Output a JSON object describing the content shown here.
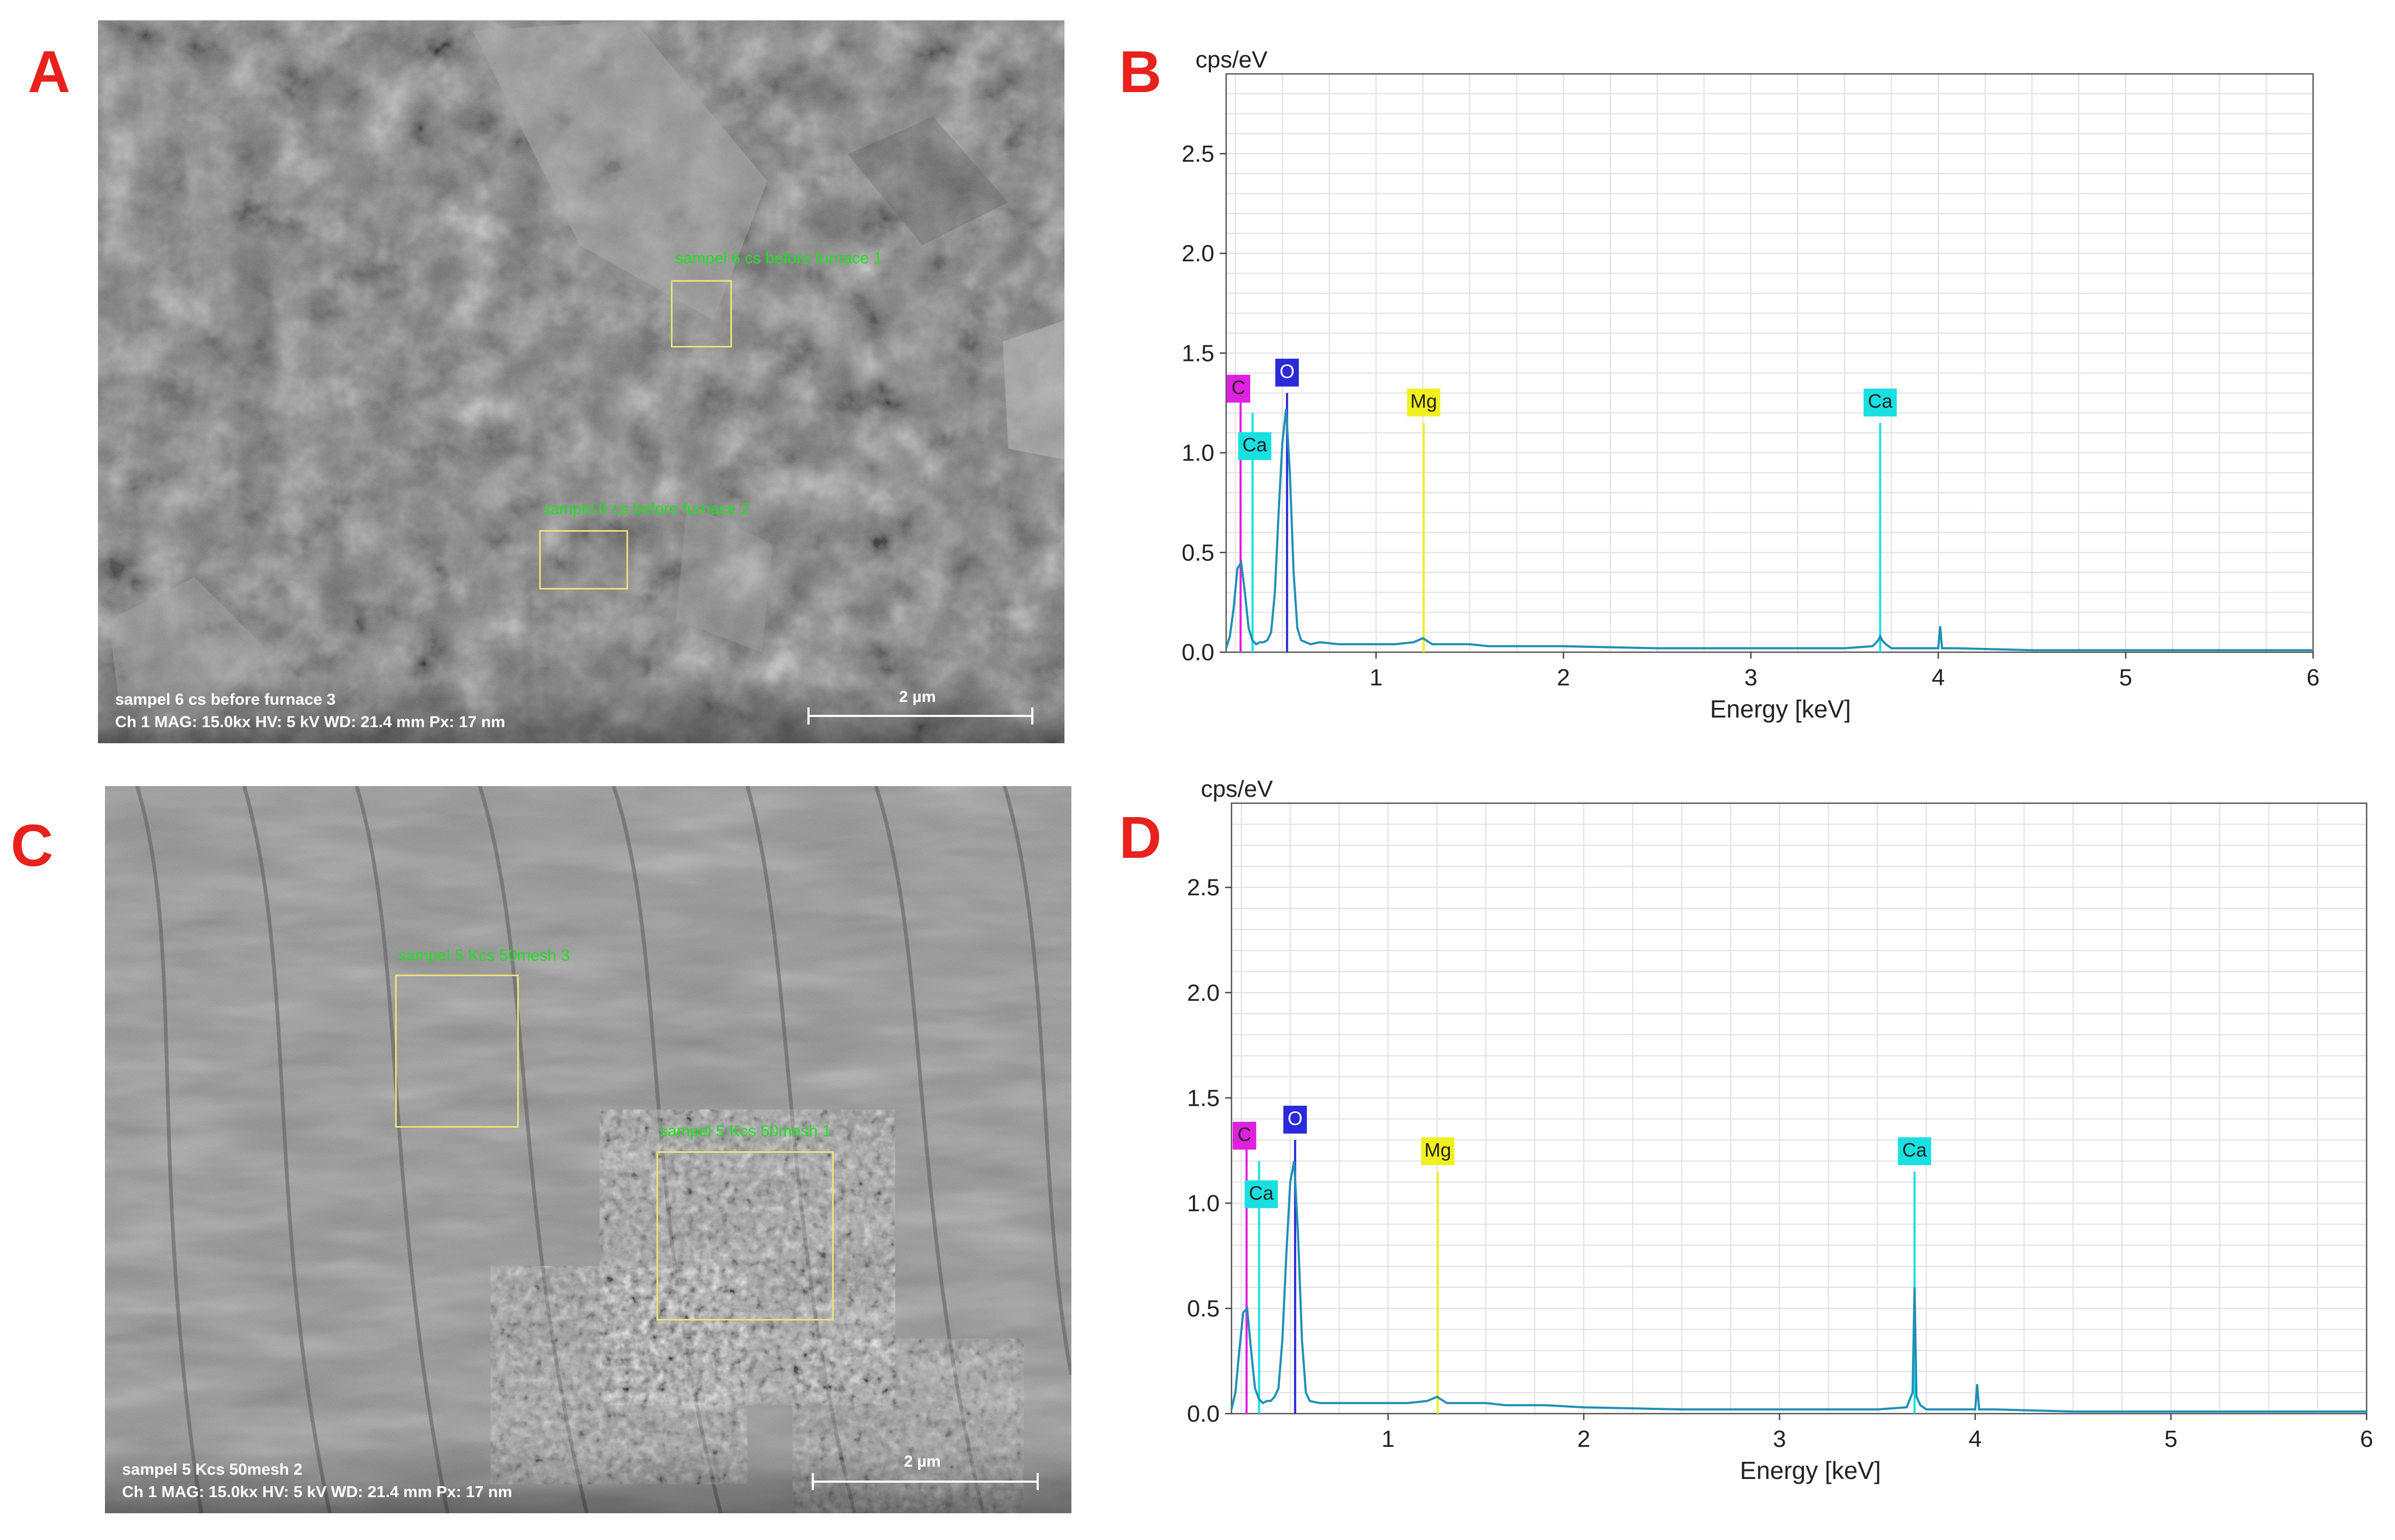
{
  "panels": {
    "A": {
      "letter": "A"
    },
    "B": {
      "letter": "B"
    },
    "C": {
      "letter": "C"
    },
    "D": {
      "letter": "D"
    }
  },
  "sem_top": {
    "roi_labels": [
      "sampel 6 cs before furnace 1",
      "sampel 6 cs before furnace 2"
    ],
    "info_line1": "sampel 6 cs before furnace 3",
    "info_line2": "Ch 1   MAG: 15.0kx   HV: 5 kV   WD: 21.4 mm   Px: 17 nm",
    "scale_label": "2 µm"
  },
  "sem_bottom": {
    "roi_labels": [
      "sampel 5 Kcs 50mesh 3",
      "sampel 5 Kcs 50mesh 1"
    ],
    "info_line1": "sampel 5 Kcs 50mesh 2",
    "info_line2": "Ch 1   MAG: 15.0kx   HV: 5 kV   WD: 21.4 mm   Px: 17 nm",
    "scale_label": "2 µm"
  },
  "colors": {
    "panel_letter": "#e8211d",
    "spectrum": "#1f8fb5",
    "C": "#e020e0",
    "Ca": "#19e0e0",
    "O": "#2a2ad8",
    "Mg": "#f0f020",
    "grid": "#e0e0e0"
  },
  "chart_data": [
    {
      "id": "B",
      "type": "line",
      "ylabel": "cps/eV",
      "xlabel": "Energy [keV]",
      "xlim": [
        0.2,
        6
      ],
      "ylim": [
        0,
        2.9
      ],
      "xticks": [
        "1",
        "2",
        "3",
        "4",
        "5",
        "6"
      ],
      "yticks": [
        "0.0",
        "0.5",
        "1.0",
        "1.5",
        "2.0",
        "2.5"
      ],
      "grid": true,
      "elements": [
        {
          "label": "C",
          "energy": 0.277,
          "height": 1.3,
          "color_key": "C"
        },
        {
          "label": "Ca",
          "energy": 0.341,
          "height": 1.2,
          "color_key": "Ca"
        },
        {
          "label": "O",
          "energy": 0.525,
          "height": 1.3,
          "color_key": "O"
        },
        {
          "label": "Mg",
          "energy": 1.254,
          "height": 1.15,
          "color_key": "Mg"
        },
        {
          "label": "Ca",
          "energy": 3.69,
          "height": 1.15,
          "color_key": "Ca"
        }
      ],
      "spectrum_x": [
        0.2,
        0.22,
        0.24,
        0.26,
        0.28,
        0.3,
        0.32,
        0.34,
        0.36,
        0.38,
        0.4,
        0.42,
        0.44,
        0.46,
        0.48,
        0.5,
        0.52,
        0.54,
        0.56,
        0.58,
        0.6,
        0.65,
        0.7,
        0.8,
        0.9,
        1.0,
        1.1,
        1.2,
        1.25,
        1.3,
        1.4,
        1.5,
        1.6,
        1.8,
        2.0,
        2.5,
        3.0,
        3.5,
        3.65,
        3.68,
        3.69,
        3.7,
        3.72,
        3.75,
        3.9,
        4.0,
        4.01,
        4.02,
        4.1,
        4.5,
        5.0,
        5.5,
        6.0
      ],
      "spectrum_y": [
        0.02,
        0.08,
        0.22,
        0.42,
        0.45,
        0.3,
        0.12,
        0.06,
        0.04,
        0.05,
        0.05,
        0.06,
        0.1,
        0.3,
        0.7,
        1.05,
        1.22,
        0.9,
        0.4,
        0.12,
        0.06,
        0.04,
        0.05,
        0.04,
        0.04,
        0.04,
        0.04,
        0.05,
        0.07,
        0.04,
        0.04,
        0.04,
        0.03,
        0.03,
        0.03,
        0.02,
        0.02,
        0.02,
        0.03,
        0.06,
        0.08,
        0.06,
        0.04,
        0.02,
        0.02,
        0.02,
        0.13,
        0.02,
        0.02,
        0.01,
        0.01,
        0.01,
        0.01
      ]
    },
    {
      "id": "D",
      "type": "line",
      "ylabel": "cps/eV",
      "xlabel": "Energy [keV]",
      "xlim": [
        0.2,
        6
      ],
      "ylim": [
        0,
        2.9
      ],
      "xticks": [
        "1",
        "2",
        "3",
        "4",
        "5",
        "6"
      ],
      "yticks": [
        "0.0",
        "0.5",
        "1.0",
        "1.5",
        "2.0",
        "2.5"
      ],
      "grid": true,
      "elements": [
        {
          "label": "C",
          "energy": 0.277,
          "height": 1.3,
          "color_key": "C"
        },
        {
          "label": "Ca",
          "energy": 0.341,
          "height": 1.2,
          "color_key": "Ca"
        },
        {
          "label": "O",
          "energy": 0.525,
          "height": 1.3,
          "color_key": "O"
        },
        {
          "label": "Mg",
          "energy": 1.254,
          "height": 1.15,
          "color_key": "Mg"
        },
        {
          "label": "Ca",
          "energy": 3.69,
          "height": 1.15,
          "color_key": "Ca"
        }
      ],
      "spectrum_x": [
        0.2,
        0.22,
        0.24,
        0.26,
        0.28,
        0.3,
        0.32,
        0.34,
        0.36,
        0.38,
        0.4,
        0.42,
        0.44,
        0.46,
        0.48,
        0.5,
        0.52,
        0.54,
        0.56,
        0.58,
        0.6,
        0.65,
        0.7,
        0.8,
        0.9,
        1.0,
        1.1,
        1.2,
        1.25,
        1.3,
        1.4,
        1.5,
        1.6,
        1.8,
        2.0,
        2.5,
        3.0,
        3.5,
        3.65,
        3.68,
        3.69,
        3.7,
        3.72,
        3.75,
        3.9,
        4.0,
        4.01,
        4.02,
        4.1,
        4.5,
        5.0,
        5.5,
        6.0
      ],
      "spectrum_y": [
        0.02,
        0.1,
        0.3,
        0.48,
        0.5,
        0.3,
        0.12,
        0.07,
        0.05,
        0.06,
        0.06,
        0.08,
        0.12,
        0.35,
        0.75,
        1.1,
        1.2,
        0.85,
        0.35,
        0.1,
        0.06,
        0.05,
        0.05,
        0.05,
        0.05,
        0.05,
        0.05,
        0.06,
        0.08,
        0.05,
        0.05,
        0.05,
        0.04,
        0.04,
        0.03,
        0.02,
        0.02,
        0.02,
        0.03,
        0.1,
        0.6,
        0.08,
        0.04,
        0.02,
        0.02,
        0.02,
        0.14,
        0.02,
        0.02,
        0.01,
        0.01,
        0.01,
        0.01
      ]
    }
  ]
}
